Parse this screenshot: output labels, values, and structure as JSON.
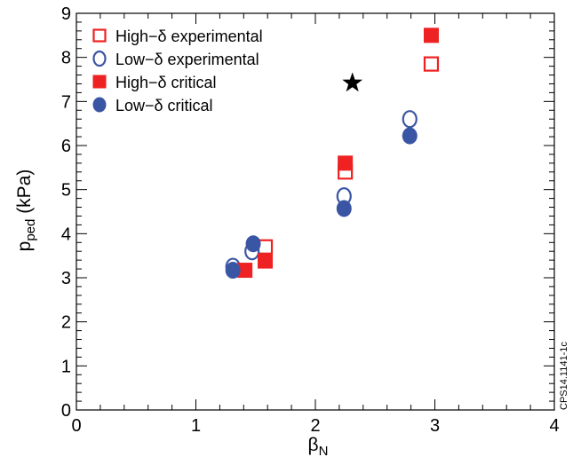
{
  "chart_data": {
    "type": "scatter",
    "xlabel": {
      "main": "β",
      "sub": "N"
    },
    "ylabel": {
      "main": "p",
      "sub": "ped",
      "rest": " (kPa)"
    },
    "xlim": [
      0,
      4
    ],
    "ylim": [
      0,
      9
    ],
    "xticks": [
      0,
      1,
      2,
      3,
      4
    ],
    "yticks": [
      0,
      1,
      2,
      3,
      4,
      5,
      6,
      7,
      8,
      9
    ],
    "grid": false,
    "legend_position": "top-left",
    "series": [
      {
        "name": "High−δ experimental",
        "marker": "square-open",
        "color": "#ee2222",
        "points": [
          [
            1.58,
            3.7
          ],
          [
            2.25,
            5.4
          ],
          [
            2.97,
            7.85
          ]
        ]
      },
      {
        "name": "Low−δ experimental",
        "marker": "circle-open",
        "color": "#3a55a4",
        "points": [
          [
            1.31,
            3.25
          ],
          [
            1.47,
            3.6
          ],
          [
            2.24,
            4.85
          ],
          [
            2.79,
            6.6
          ]
        ]
      },
      {
        "name": "High−δ critical",
        "marker": "square-filled",
        "color": "#ee2222",
        "points": [
          [
            1.41,
            3.17
          ],
          [
            1.58,
            3.38
          ],
          [
            2.25,
            5.6
          ],
          [
            2.97,
            8.5
          ]
        ]
      },
      {
        "name": "Low−δ critical",
        "marker": "circle-filled",
        "color": "#3a55a4",
        "points": [
          [
            1.31,
            3.17
          ],
          [
            1.48,
            3.77
          ],
          [
            2.24,
            4.57
          ],
          [
            2.79,
            6.22
          ]
        ]
      }
    ],
    "annotations": [
      {
        "type": "star",
        "x": 2.31,
        "y": 7.42,
        "color": "#000000"
      }
    ],
    "side_note": "CPS14.1141-1c"
  }
}
